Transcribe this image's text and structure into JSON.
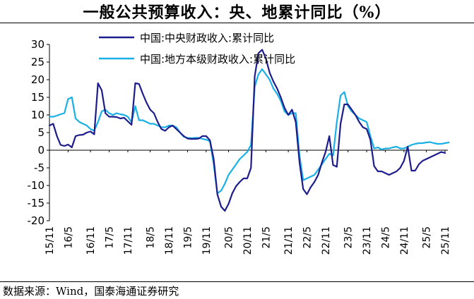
{
  "title": "一般公共预算收入：央、地累计同比（%）",
  "source": "数据来源：Wind，国泰海通证券研究",
  "chart_data": {
    "type": "line",
    "ylim": [
      -20,
      30
    ],
    "yticks": [
      -20,
      -15,
      -10,
      -5,
      0,
      5,
      10,
      15,
      20,
      25,
      30
    ],
    "xlabels": [
      "15/11",
      "16/5",
      "16/11",
      "17/5",
      "17/11",
      "18/5",
      "18/11",
      "19/5",
      "19/11",
      "20/5",
      "20/11",
      "21/5",
      "21/11",
      "22/5",
      "22/11",
      "23/5",
      "23/11",
      "24/5",
      "24/11",
      "25/5",
      "25/11"
    ],
    "legend_position": "top-left",
    "series": [
      {
        "name": "中国:中央财政收入:累计同比",
        "color": "#1c1c8c",
        "values": [
          7.0,
          7.5,
          4.0,
          1.5,
          1.2,
          1.6,
          0.8,
          4.0,
          4.3,
          4.4,
          5.0,
          5.3,
          4.5,
          19.0,
          17.0,
          10.5,
          9.5,
          9.5,
          9.4,
          9.0,
          9.2,
          8.2,
          7.2,
          19.0,
          18.8,
          16.0,
          13.5,
          11.5,
          10.5,
          8.0,
          6.0,
          5.5,
          6.5,
          7.0,
          6.0,
          5.0,
          4.0,
          3.3,
          3.2,
          3.2,
          3.3,
          4.0,
          4.0,
          2.8,
          -2.5,
          -12.5,
          -16.0,
          -17.2,
          -15.2,
          -12.2,
          -10.2,
          -9.0,
          -8.0,
          -8.0,
          -5.0,
          21.0,
          27.5,
          28.5,
          26.0,
          22.0,
          19.5,
          17.5,
          15.0,
          12.0,
          10.0,
          11.5,
          8.0,
          -3.5,
          -11.0,
          -12.5,
          -10.5,
          -9.0,
          -7.0,
          -3.5,
          -0.5,
          4.0,
          -4.2,
          -4.7,
          7.5,
          13.0,
          13.0,
          11.5,
          10.0,
          8.0,
          6.5,
          6.0,
          3.0,
          -4.5,
          -6.0,
          -6.0,
          -6.5,
          -7.0,
          -6.5,
          -6.0,
          -5.0,
          -3.0,
          1.0,
          -5.8,
          -5.8,
          -4.0,
          -3.0,
          -2.5,
          -2.0,
          -1.5,
          -1.0,
          -0.5,
          -0.8
        ],
        "labels": [
          {
            "index": 1,
            "text": "15/11"
          }
        ]
      },
      {
        "name": "中国:地方本级财政收入:累计同比",
        "color": "#19b0e6",
        "values": [
          9.5,
          9.5,
          9.8,
          10.2,
          10.5,
          14.5,
          15.0,
          9.0,
          8.0,
          7.5,
          7.0,
          6.0,
          5.5,
          8.0,
          11.0,
          11.5,
          10.5,
          10.0,
          10.5,
          10.2,
          10.0,
          9.5,
          8.0,
          12.5,
          8.5,
          8.5,
          8.0,
          7.5,
          7.5,
          7.0,
          6.5,
          6.5,
          7.0,
          7.0,
          6.5,
          5.0,
          3.8,
          3.5,
          3.4,
          3.5,
          3.5,
          3.2,
          3.0,
          2.5,
          -4.0,
          -12.2,
          -11.5,
          -9.5,
          -7.0,
          -5.5,
          -4.0,
          -2.5,
          -1.5,
          -0.5,
          1.5,
          18.0,
          21.5,
          23.0,
          21.5,
          20.0,
          17.5,
          16.0,
          14.0,
          11.0,
          10.0,
          10.5,
          10.5,
          -1.5,
          -8.5,
          -8.0,
          -7.5,
          -7.0,
          -5.5,
          -4.0,
          -2.5,
          -1.0,
          -1.5,
          8.0,
          15.5,
          16.5,
          12.5,
          11.0,
          10.0,
          9.0,
          8.5,
          8.0,
          4.0,
          0.5,
          0.8,
          0.2,
          0.5,
          0.5,
          0.8,
          1.0,
          0.5,
          0.5,
          1.0,
          1.5,
          1.8,
          2.0,
          2.0,
          2.2,
          2.3,
          2.0,
          1.8,
          1.8,
          2.0,
          2.2
        ]
      }
    ]
  }
}
